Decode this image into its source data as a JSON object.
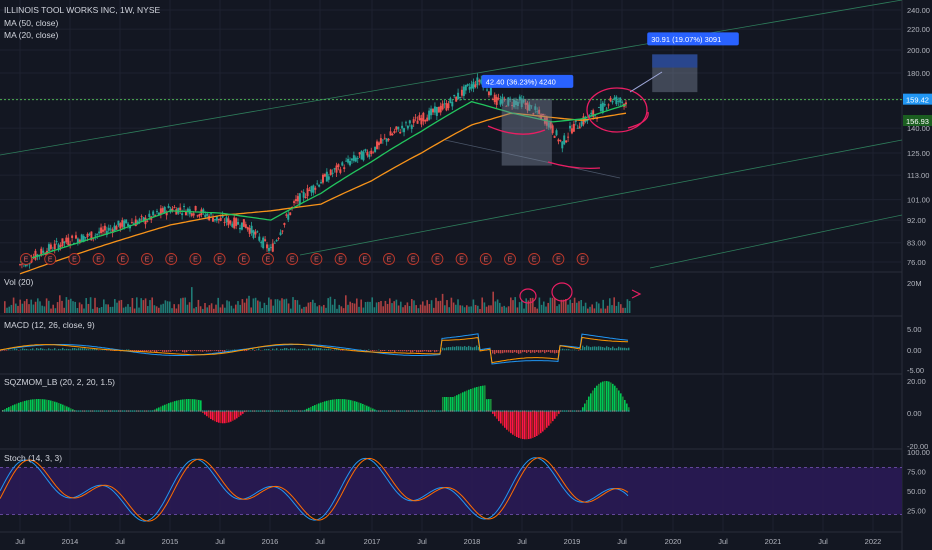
{
  "chart_data": {
    "type": "candlestick",
    "title": "ILLINOIS TOOL WORKS INC, 1W, NYSE",
    "indicators_legend": [
      "MA (50, close)",
      "MA (20, close)"
    ],
    "x_tick_labels": [
      "Jul",
      "2014",
      "Jul",
      "2015",
      "Jul",
      "2016",
      "Jul",
      "2017",
      "Jul",
      "2018",
      "Jul",
      "2019",
      "Jul",
      "2020",
      "Jul",
      "2021",
      "Jul",
      "2022"
    ],
    "price_axis": {
      "ticks": [
        240.0,
        220.0,
        200.0,
        180.0,
        160.0,
        140.0,
        125.0,
        113.0,
        101.0,
        92.0,
        83.0,
        76.0
      ],
      "tick_labels": [
        "240.00",
        "220.00",
        "200.00",
        "180.00",
        "160.00",
        "140.00",
        "125.00",
        "113.00",
        "101.00",
        "92.00",
        "83.00",
        "76.00"
      ],
      "scale": "log",
      "last_price_label": "159.42",
      "last_price_color": "#2196f3",
      "ma_price_label": "156.93",
      "dotted_level": 159.42
    },
    "price_series": {
      "x": [
        2013.5,
        2013.75,
        2014.0,
        2014.25,
        2014.5,
        2014.75,
        2015.0,
        2015.25,
        2015.5,
        2015.75,
        2016.0,
        2016.25,
        2016.5,
        2016.75,
        2017.0,
        2017.25,
        2017.5,
        2017.75,
        2018.0,
        2018.1,
        2018.25,
        2018.5,
        2018.75,
        2018.9,
        2019.0,
        2019.25,
        2019.4,
        2019.55
      ],
      "close": [
        75,
        80,
        84,
        86,
        90,
        92,
        97,
        96,
        92,
        90,
        80,
        100,
        110,
        119,
        126,
        138,
        146,
        155,
        170,
        175,
        158,
        158,
        145,
        130,
        140,
        150,
        160,
        157
      ],
      "marker_color_up": "#26a69a",
      "marker_color_down": "#ef5350"
    },
    "ma_series": [
      {
        "name": "MA (50, close)",
        "color": "#f7931a",
        "x": [
          2013.5,
          2014.0,
          2014.5,
          2015.0,
          2015.5,
          2016.0,
          2016.5,
          2017.0,
          2017.5,
          2018.0,
          2018.4,
          2018.8,
          2019.1,
          2019.55
        ],
        "values": [
          72,
          78,
          84,
          90,
          94,
          96,
          99,
          110,
          125,
          142,
          150,
          147,
          145,
          150
        ]
      },
      {
        "name": "MA (20, close)",
        "color": "#22c55e",
        "x": [
          2013.5,
          2014.0,
          2014.5,
          2015.0,
          2015.5,
          2016.0,
          2016.5,
          2017.0,
          2017.5,
          2018.0,
          2018.4,
          2018.8,
          2019.1,
          2019.55
        ],
        "values": [
          76,
          82,
          88,
          96,
          95,
          92,
          104,
          120,
          138,
          158,
          150,
          144,
          146,
          156
        ]
      }
    ],
    "earnings_marker": "E",
    "earnings_count": 24,
    "measurements": [
      {
        "label": "42.40 (36.23%) 4240",
        "x_start": 2018.3,
        "x_end": 2018.8,
        "from": 118,
        "to": 160
      },
      {
        "label": "30.91 (19.07%) 3091",
        "x_start": 2019.8,
        "x_end": 2020.25,
        "from": 165,
        "to": 196
      }
    ],
    "panes": [
      {
        "name": "Vol (20)",
        "axis_labels": [
          "20M"
        ]
      },
      {
        "name": "MACD (12, 26, close, 9)",
        "axis_labels": [
          "5.00",
          "0.00",
          "-5.00"
        ]
      },
      {
        "name": "SQZMOM_LB (20, 2, 20, 1.5)",
        "axis_labels": [
          "20.00",
          "0.00",
          "-20.00"
        ]
      },
      {
        "name": "Stoch (14, 3, 3)",
        "axis_labels": [
          "100.00",
          "75.00",
          "50.00",
          "25.00"
        ]
      }
    ],
    "colors": {
      "background": "#131722",
      "up": "#26a69a",
      "down": "#ef5350",
      "annotation": "#e91e63",
      "stoch_band": "#2a1a55"
    }
  }
}
